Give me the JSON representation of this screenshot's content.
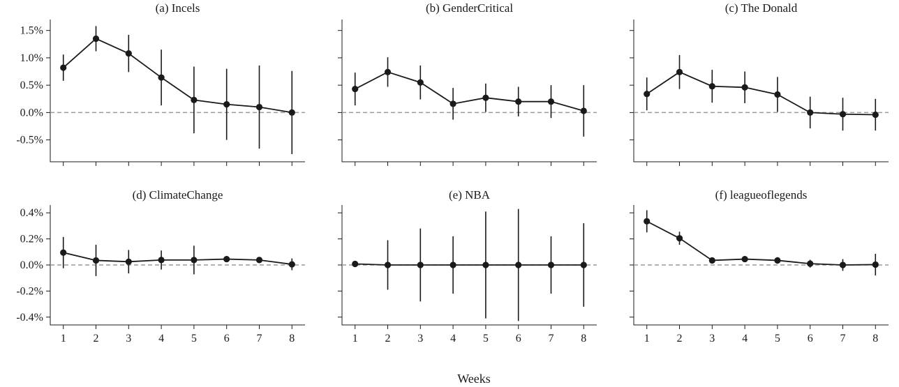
{
  "figure": {
    "xlabel": "Weeks"
  },
  "style": {
    "line_color": "#1a1a1a",
    "zero_line_color": "#999999",
    "axis_color": "#1a1a1a"
  },
  "chart_data": [
    {
      "type": "line",
      "title": "(a) Incels",
      "x": [
        1,
        2,
        3,
        4,
        5,
        6,
        7,
        8
      ],
      "values": [
        0.82,
        1.35,
        1.08,
        0.64,
        0.23,
        0.15,
        0.1,
        0.0
      ],
      "error_low": [
        0.58,
        1.12,
        0.74,
        0.13,
        -0.38,
        -0.5,
        -0.66,
        -0.76
      ],
      "error_high": [
        1.06,
        1.58,
        1.42,
        1.15,
        0.84,
        0.8,
        0.86,
        0.76
      ],
      "ylim": [
        -0.9,
        1.7
      ],
      "yticks": [
        -0.5,
        0.0,
        0.5,
        1.0,
        1.5
      ],
      "ytick_labels": [
        "-0.5%",
        "0.0%",
        "0.5%",
        "1.0%",
        "1.5%"
      ],
      "xticks": [
        1,
        2,
        3,
        4,
        5,
        6,
        7,
        8
      ],
      "xtick_labels": [],
      "show_ytick_labels": true
    },
    {
      "type": "line",
      "title": "(b) GenderCritical",
      "x": [
        1,
        2,
        3,
        4,
        5,
        6,
        7,
        8
      ],
      "values": [
        0.43,
        0.74,
        0.55,
        0.16,
        0.27,
        0.2,
        0.2,
        0.03
      ],
      "error_low": [
        0.13,
        0.47,
        0.24,
        -0.13,
        0.01,
        -0.07,
        -0.1,
        -0.44
      ],
      "error_high": [
        0.73,
        1.01,
        0.86,
        0.45,
        0.53,
        0.47,
        0.5,
        0.5
      ],
      "ylim": [
        -0.9,
        1.7
      ],
      "yticks": [
        -0.5,
        0.0,
        0.5,
        1.0,
        1.5
      ],
      "ytick_labels": [],
      "xticks": [
        1,
        2,
        3,
        4,
        5,
        6,
        7,
        8
      ],
      "xtick_labels": [],
      "show_ytick_labels": false
    },
    {
      "type": "line",
      "title": "(c) The Donald",
      "x": [
        1,
        2,
        3,
        4,
        5,
        6,
        7,
        8
      ],
      "values": [
        0.34,
        0.74,
        0.48,
        0.46,
        0.33,
        0.0,
        -0.03,
        -0.04
      ],
      "error_low": [
        0.04,
        0.43,
        0.18,
        0.17,
        0.01,
        -0.29,
        -0.33,
        -0.33
      ],
      "error_high": [
        0.64,
        1.05,
        0.78,
        0.75,
        0.65,
        0.29,
        0.27,
        0.25
      ],
      "ylim": [
        -0.9,
        1.7
      ],
      "yticks": [
        -0.5,
        0.0,
        0.5,
        1.0,
        1.5
      ],
      "ytick_labels": [],
      "xticks": [
        1,
        2,
        3,
        4,
        5,
        6,
        7,
        8
      ],
      "xtick_labels": [],
      "show_ytick_labels": false
    },
    {
      "type": "line",
      "title": "(d) ClimateChange",
      "x": [
        1,
        2,
        3,
        4,
        5,
        6,
        7,
        8
      ],
      "values": [
        0.095,
        0.035,
        0.025,
        0.038,
        0.038,
        0.045,
        0.038,
        0.005
      ],
      "error_low": [
        -0.025,
        -0.085,
        -0.065,
        -0.035,
        -0.072,
        0.032,
        0.025,
        -0.04
      ],
      "error_high": [
        0.215,
        0.155,
        0.115,
        0.111,
        0.148,
        0.058,
        0.051,
        0.05
      ],
      "ylim": [
        -0.46,
        0.46
      ],
      "yticks": [
        -0.4,
        -0.2,
        0.0,
        0.2,
        0.4
      ],
      "ytick_labels": [
        "-0.4%",
        "-0.2%",
        "0.0%",
        "0.2%",
        "0.4%"
      ],
      "xticks": [
        1,
        2,
        3,
        4,
        5,
        6,
        7,
        8
      ],
      "xtick_labels": [
        "1",
        "2",
        "3",
        "4",
        "5",
        "6",
        "7",
        "8"
      ],
      "show_ytick_labels": true
    },
    {
      "type": "line",
      "title": "(e) NBA",
      "x": [
        1,
        2,
        3,
        4,
        5,
        6,
        7,
        8
      ],
      "values": [
        0.008,
        0.0,
        0.0,
        0.0,
        0.0,
        0.0,
        0.0,
        0.0
      ],
      "error_low": [
        0.0,
        -0.19,
        -0.28,
        -0.22,
        -0.41,
        -0.43,
        -0.22,
        -0.32
      ],
      "error_high": [
        0.016,
        0.19,
        0.28,
        0.22,
        0.41,
        0.43,
        0.22,
        0.32
      ],
      "ylim": [
        -0.46,
        0.46
      ],
      "yticks": [
        -0.4,
        -0.2,
        0.0,
        0.2,
        0.4
      ],
      "ytick_labels": [],
      "xticks": [
        1,
        2,
        3,
        4,
        5,
        6,
        7,
        8
      ],
      "xtick_labels": [
        "1",
        "2",
        "3",
        "4",
        "5",
        "6",
        "7",
        "8"
      ],
      "show_ytick_labels": false
    },
    {
      "type": "line",
      "title": "(f) leagueoflegends",
      "x": [
        1,
        2,
        3,
        4,
        5,
        6,
        7,
        8
      ],
      "values": [
        0.335,
        0.205,
        0.035,
        0.045,
        0.035,
        0.01,
        0.0,
        0.003
      ],
      "error_low": [
        0.25,
        0.155,
        0.015,
        0.025,
        0.01,
        -0.02,
        -0.045,
        -0.08
      ],
      "error_high": [
        0.42,
        0.255,
        0.055,
        0.065,
        0.06,
        0.04,
        0.045,
        0.086
      ],
      "ylim": [
        -0.46,
        0.46
      ],
      "yticks": [
        -0.4,
        -0.2,
        0.0,
        0.2,
        0.4
      ],
      "ytick_labels": [],
      "xticks": [
        1,
        2,
        3,
        4,
        5,
        6,
        7,
        8
      ],
      "xtick_labels": [
        "1",
        "2",
        "3",
        "4",
        "5",
        "6",
        "7",
        "8"
      ],
      "show_ytick_labels": false
    }
  ]
}
